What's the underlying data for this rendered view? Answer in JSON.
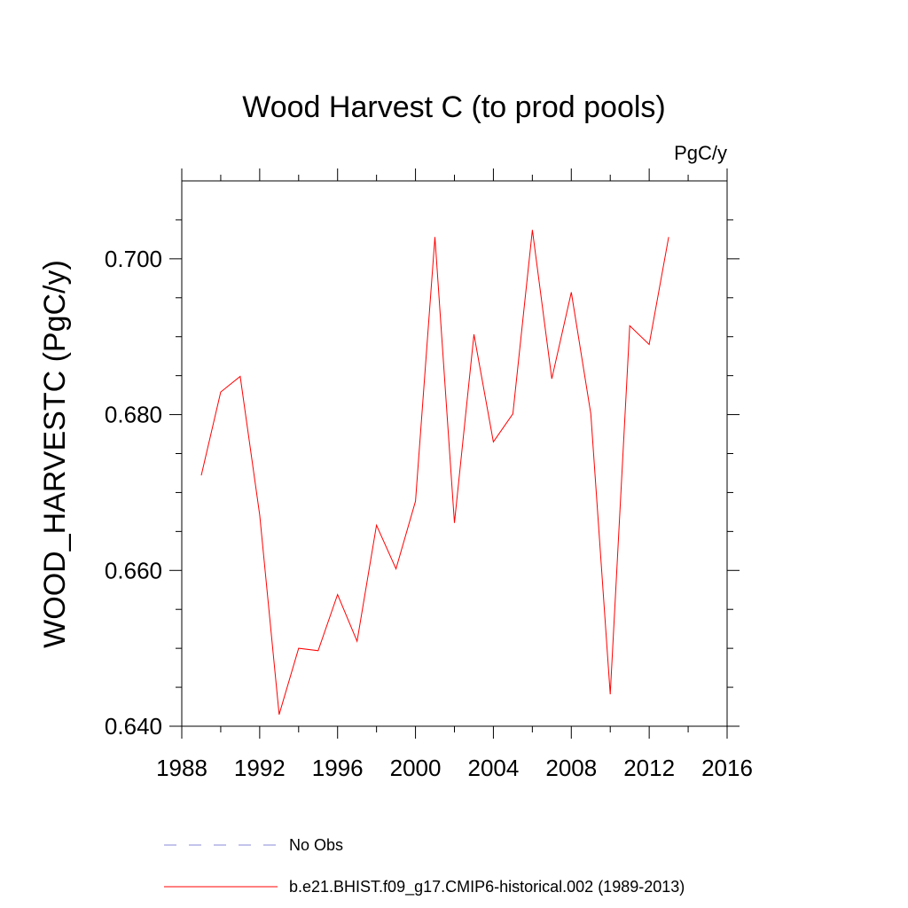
{
  "chart_data": {
    "type": "line",
    "title": "Wood Harvest C (to prod pools)",
    "units_label": "PgC/y",
    "ylabel": "WOOD_HARVESTC  (PgC/y)",
    "xlabel": "",
    "xlim": [
      1988,
      2016
    ],
    "ylim": [
      0.64,
      0.71
    ],
    "x_ticks": [
      1988,
      1992,
      1996,
      2000,
      2004,
      2008,
      2012,
      2016
    ],
    "x_tick_labels": [
      "1988",
      "1992",
      "1996",
      "2000",
      "2004",
      "2008",
      "2012",
      "2016"
    ],
    "y_ticks": [
      0.64,
      0.66,
      0.68,
      0.7
    ],
    "y_tick_labels": [
      "0.640",
      "0.660",
      "0.680",
      "0.700"
    ],
    "grid": false,
    "legend_position": "bottom",
    "series": [
      {
        "name": "b.e21.BHIST.f09_g17.CMIP6-historical.002 (1989-2013)",
        "color": "#ff0000",
        "line_style": "solid",
        "x": [
          1989,
          1990,
          1991,
          1992,
          1993,
          1994,
          1995,
          1996,
          1997,
          1998,
          1999,
          2000,
          2001,
          2002,
          2003,
          2004,
          2005,
          2006,
          2007,
          2008,
          2009,
          2010,
          2011,
          2012,
          2013
        ],
        "y": [
          0.6722,
          0.6829,
          0.6849,
          0.6671,
          0.6415,
          0.65,
          0.6497,
          0.6569,
          0.6509,
          0.6658,
          0.6602,
          0.6689,
          0.7028,
          0.6661,
          0.6903,
          0.6765,
          0.6801,
          0.7037,
          0.6846,
          0.6957,
          0.6801,
          0.6441,
          0.6914,
          0.689,
          0.7028
        ]
      }
    ],
    "legend": [
      {
        "label": "No Obs",
        "color": "#8a8ad8",
        "line_style": "dashed"
      },
      {
        "label": "b.e21.BHIST.f09_g17.CMIP6-historical.002 (1989-2013)",
        "color": "#ff0000",
        "line_style": "solid"
      }
    ]
  }
}
